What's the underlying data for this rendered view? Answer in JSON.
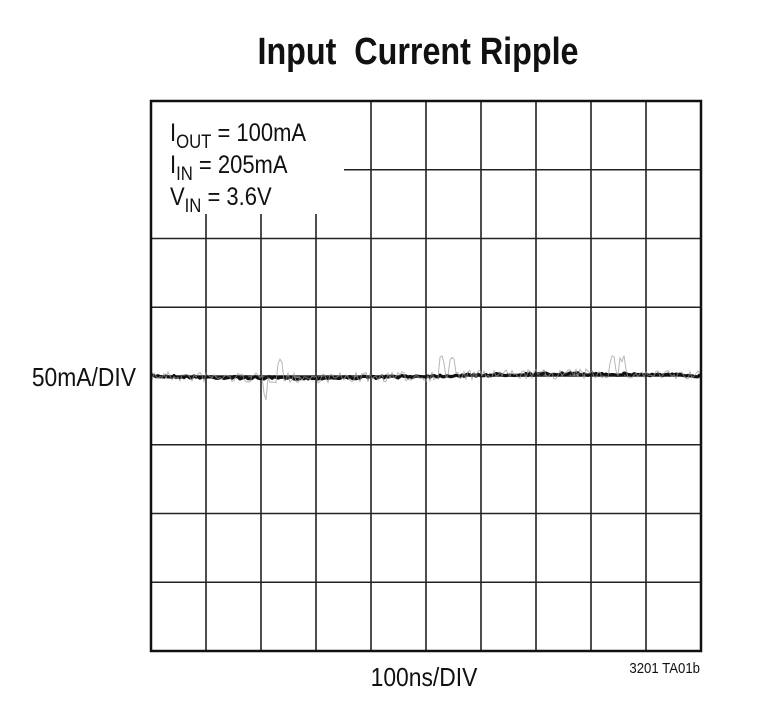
{
  "title": "Input  Current Ripple",
  "annotations": [
    {
      "symbol": "I",
      "subscript": "OUT",
      "text": " = 100mA"
    },
    {
      "symbol": "I",
      "subscript": "IN",
      "text": " = 205mA"
    },
    {
      "symbol": "V",
      "subscript": "IN",
      "text": " = 3.6V"
    }
  ],
  "y_label": "50mA/DIV",
  "x_label": "100ns/DIV",
  "figure_id": "3201 TA01b"
}
